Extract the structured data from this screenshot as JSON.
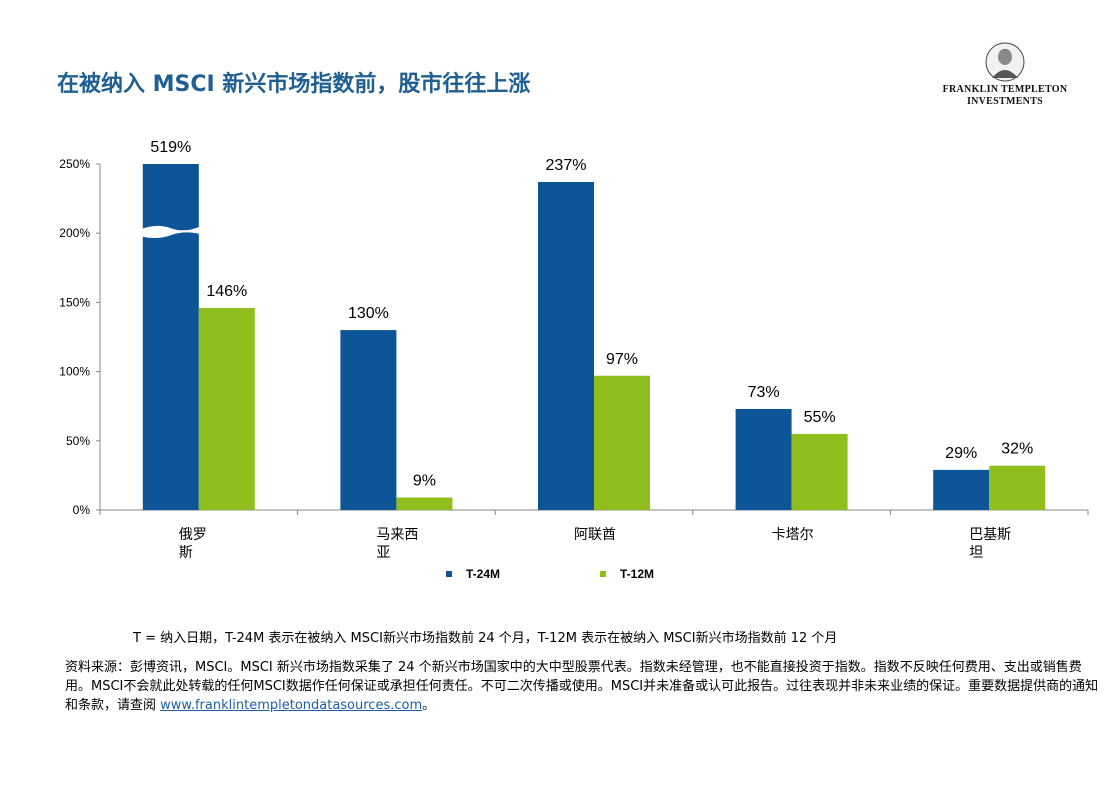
{
  "page": {
    "title": "在被纳入 MSCI 新兴市场指数前，股市往往上涨",
    "logo_line1": "FRANKLIN TEMPLETON",
    "logo_line2": "INVESTMENTS",
    "note": "T = 纳入日期，T-24M 表示在被纳入 MSCI新兴市场指数前 24 个月，T-12M 表示在被纳入 MSCI新兴市场指数前 12 个月",
    "source_text": "资料来源：彭博资讯，MSCI。MSCI 新兴市场指数采集了 24 个新兴市场国家中的大中型股票代表。指数未经管理，也不能直接投资于指数。指数不反映任何费用、支出或销售费用。MSCI不会就此处转载的任何MSCI数据作任何保证或承担任何责任。不可二次传播或使用。MSCI并未准备或认可此报告。过往表现并非未来业绩的保证。重要数据提供商的通知和条款，请查阅 ",
    "source_link": "www.franklintempletondatasources.com",
    "source_end": "。"
  },
  "colors": {
    "title": "#1f5f92",
    "series_1": "#0e5598",
    "series_2": "#8fbe1d"
  },
  "chart_data": {
    "type": "bar",
    "categories": [
      [
        "俄罗",
        "斯"
      ],
      [
        "马来西",
        "亚"
      ],
      [
        "阿联酋"
      ],
      [
        "卡塔尔"
      ],
      [
        "巴基斯",
        "坦"
      ]
    ],
    "series": [
      {
        "name": "T-24M",
        "values": [
          519,
          130,
          237,
          73,
          29
        ],
        "labels": [
          "519%",
          "130%",
          "237%",
          "73%",
          "29%"
        ]
      },
      {
        "name": "T-12M",
        "values": [
          146,
          9,
          97,
          55,
          32
        ],
        "labels": [
          "146%",
          "9%",
          "97%",
          "55%",
          "32%"
        ]
      }
    ],
    "ylim": [
      0,
      250
    ],
    "yticks": [
      0,
      50,
      100,
      150,
      200,
      250
    ],
    "ytick_labels": [
      "0%",
      "50%",
      "100%",
      "150%",
      "200%",
      "250%"
    ],
    "axis_break": {
      "series": 0,
      "category": 0
    },
    "grid": false,
    "legend_placement": "bottom-center"
  }
}
